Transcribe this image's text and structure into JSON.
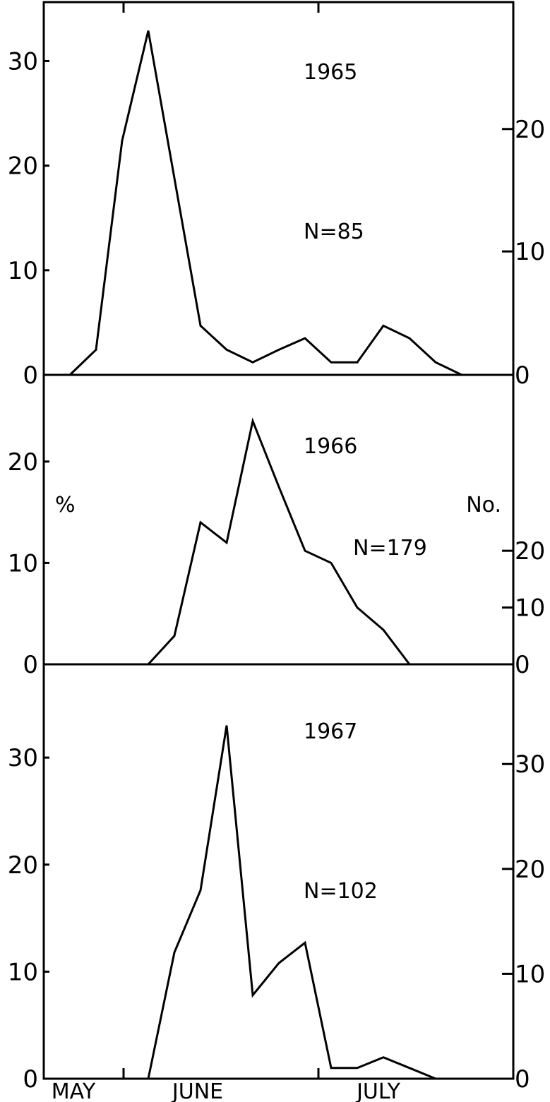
{
  "chart_data": {
    "type": "line",
    "x_unit": "week",
    "x_categories": [
      "MAY",
      "JUNE",
      "JULY"
    ],
    "left_axis_label": "%",
    "right_axis_label": "No.",
    "panels": [
      {
        "year_label": "1965",
        "n_label": "N=85",
        "ylim_pct": [
          0,
          33
        ],
        "left_ticks": [
          "0",
          "10",
          "20",
          "30"
        ],
        "right_ticks": [
          "0",
          "10",
          "20"
        ],
        "right_tick_values_pct": [
          0,
          11.8,
          23.5
        ],
        "points": [
          [
            1,
            0
          ],
          [
            2,
            2.4
          ],
          [
            3,
            22.4
          ],
          [
            4,
            32.9
          ],
          [
            5,
            18.8
          ],
          [
            6,
            4.7
          ],
          [
            7,
            2.4
          ],
          [
            8,
            1.2
          ],
          [
            9,
            2.4
          ],
          [
            10,
            3.5
          ],
          [
            11,
            1.2
          ],
          [
            12,
            1.2
          ],
          [
            13,
            4.7
          ],
          [
            14,
            3.5
          ],
          [
            15,
            1.2
          ],
          [
            16,
            0
          ]
        ]
      },
      {
        "year_label": "1966",
        "n_label": "N=179",
        "ylim_pct": [
          0,
          25
        ],
        "left_ticks": [
          "0",
          "10",
          "20"
        ],
        "right_ticks": [
          "0",
          "10",
          "20"
        ],
        "right_tick_values_pct": [
          0,
          5.6,
          11.2
        ],
        "points": [
          [
            4,
            0
          ],
          [
            5,
            2.8
          ],
          [
            6,
            14.0
          ],
          [
            7,
            12.0
          ],
          [
            8,
            24.0
          ],
          [
            9,
            17.5
          ],
          [
            10,
            11.2
          ],
          [
            11,
            10.0
          ],
          [
            12,
            5.6
          ],
          [
            13,
            3.4
          ],
          [
            14,
            0
          ]
        ]
      },
      {
        "year_label": "1967",
        "n_label": "N=102",
        "ylim_pct": [
          0,
          37
        ],
        "left_ticks": [
          "0",
          "10",
          "20",
          "30"
        ],
        "right_ticks": [
          "0",
          "10",
          "20",
          "30"
        ],
        "right_tick_values_pct": [
          0,
          9.8,
          19.6,
          29.4
        ],
        "points": [
          [
            4,
            0
          ],
          [
            5,
            11.8
          ],
          [
            6,
            17.6
          ],
          [
            7,
            33.0
          ],
          [
            8,
            7.8
          ],
          [
            9,
            10.8
          ],
          [
            10,
            12.7
          ],
          [
            11,
            1.0
          ],
          [
            12,
            1.0
          ],
          [
            13,
            2.0
          ],
          [
            14,
            1.0
          ],
          [
            15,
            0
          ]
        ]
      }
    ]
  }
}
